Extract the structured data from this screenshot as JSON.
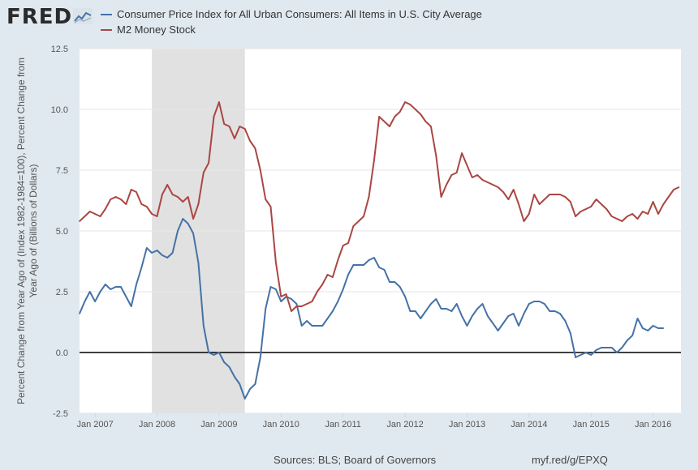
{
  "header": {
    "logo_text": "FRED",
    "logo_icon": "line-chart-icon"
  },
  "footer": {
    "sources": "Sources: BLS; Board of Governors",
    "link": "myf.red/g/EPXQ"
  },
  "colors": {
    "cpi": "#4572a7",
    "m2": "#aa4643",
    "recession": "#e1e1e1",
    "plot_bg": "#ffffff",
    "zero_line": "#000000"
  },
  "chart_data": {
    "type": "line",
    "ylabel_line1": "Percent Change from Year Ago of (Index 1982-1984=100), Percent Change from",
    "ylabel_line2": "Year Ago of (Billions of Dollars)",
    "ylim": [
      -2.5,
      12.5
    ],
    "yticks": [
      -2.5,
      0.0,
      2.5,
      5.0,
      7.5,
      10.0,
      12.5
    ],
    "ytick_labels": [
      "-2.5",
      "0.0",
      "2.5",
      "5.0",
      "7.5",
      "10.0",
      "12.5"
    ],
    "xlim": [
      2006.75,
      2016.45
    ],
    "xticks": [
      2007,
      2008,
      2009,
      2010,
      2011,
      2012,
      2013,
      2014,
      2015,
      2016
    ],
    "xtick_labels": [
      "Jan 2007",
      "Jan 2008",
      "Jan 2009",
      "Jan 2010",
      "Jan 2011",
      "Jan 2012",
      "Jan 2013",
      "Jan 2014",
      "Jan 2015",
      "Jan 2016"
    ],
    "recession": [
      2007.917,
      2009.417
    ],
    "x_start": 2006.75,
    "x_step": 0.0833333,
    "series": [
      {
        "name": "Consumer Price Index for All Urban Consumers: All Items in U.S. City Average",
        "key": "cpi",
        "values": [
          1.6,
          2.1,
          2.5,
          2.1,
          2.5,
          2.8,
          2.6,
          2.7,
          2.7,
          2.3,
          1.9,
          2.8,
          3.5,
          4.3,
          4.1,
          4.2,
          4.0,
          3.9,
          4.1,
          5.0,
          5.5,
          5.3,
          4.9,
          3.7,
          1.1,
          0.0,
          -0.1,
          0.0,
          -0.4,
          -0.6,
          -1.0,
          -1.3,
          -1.9,
          -1.5,
          -1.3,
          -0.2,
          1.8,
          2.7,
          2.6,
          2.1,
          2.3,
          2.2,
          2.0,
          1.1,
          1.3,
          1.1,
          1.1,
          1.1,
          1.4,
          1.7,
          2.1,
          2.6,
          3.2,
          3.6,
          3.6,
          3.6,
          3.8,
          3.9,
          3.5,
          3.4,
          2.9,
          2.9,
          2.7,
          2.3,
          1.7,
          1.7,
          1.4,
          1.7,
          2.0,
          2.2,
          1.8,
          1.8,
          1.7,
          2.0,
          1.5,
          1.1,
          1.5,
          1.8,
          2.0,
          1.5,
          1.2,
          0.9,
          1.2,
          1.5,
          1.6,
          1.1,
          1.6,
          2.0,
          2.1,
          2.1,
          2.0,
          1.7,
          1.7,
          1.6,
          1.3,
          0.8,
          -0.2,
          -0.1,
          0.0,
          -0.1,
          0.1,
          0.2,
          0.2,
          0.2,
          0.0,
          0.2,
          0.5,
          0.7,
          1.4,
          1.0,
          0.9,
          1.1,
          1.0,
          1.0
        ]
      },
      {
        "name": "M2 Money Stock",
        "key": "m2",
        "values": [
          5.4,
          5.6,
          5.8,
          5.7,
          5.6,
          5.9,
          6.3,
          6.4,
          6.3,
          6.1,
          6.7,
          6.6,
          6.1,
          6.0,
          5.7,
          5.6,
          6.5,
          6.9,
          6.5,
          6.4,
          6.2,
          6.4,
          5.5,
          6.1,
          7.4,
          7.8,
          9.7,
          10.3,
          9.4,
          9.3,
          8.8,
          9.3,
          9.2,
          8.7,
          8.4,
          7.5,
          6.3,
          6.0,
          3.7,
          2.3,
          2.4,
          1.7,
          1.9,
          1.9,
          2.0,
          2.1,
          2.5,
          2.8,
          3.2,
          3.1,
          3.8,
          4.4,
          4.5,
          5.2,
          5.4,
          5.6,
          6.4,
          7.9,
          9.7,
          9.5,
          9.3,
          9.7,
          9.9,
          10.3,
          10.2,
          10.0,
          9.8,
          9.5,
          9.3,
          8.1,
          6.4,
          6.9,
          7.3,
          7.4,
          8.2,
          7.7,
          7.2,
          7.3,
          7.1,
          7.0,
          6.9,
          6.8,
          6.6,
          6.3,
          6.7,
          6.1,
          5.4,
          5.7,
          6.5,
          6.1,
          6.3,
          6.5,
          6.5,
          6.5,
          6.4,
          6.2,
          5.6,
          5.8,
          5.9,
          6.0,
          6.3,
          6.1,
          5.9,
          5.6,
          5.5,
          5.4,
          5.6,
          5.7,
          5.5,
          5.8,
          5.7,
          6.2,
          5.7,
          6.1,
          6.4,
          6.7,
          6.8
        ]
      }
    ]
  }
}
